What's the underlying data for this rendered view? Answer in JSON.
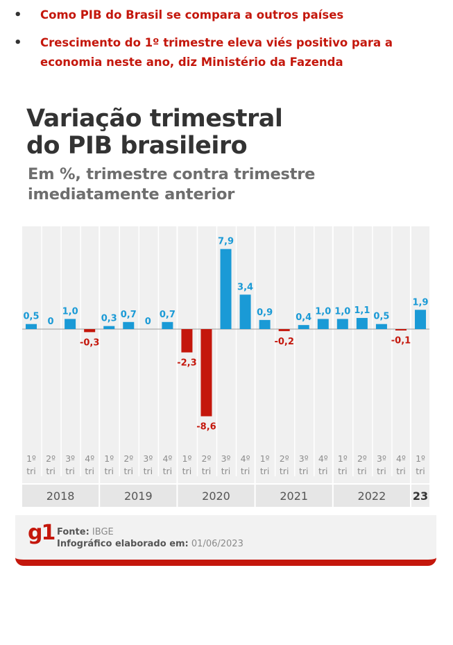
{
  "links": [
    "Como PIB do Brasil se compara a outros países",
    "Crescimento do 1º trimestre eleva viés positivo para a economia neste ano, diz Ministério da Fazenda"
  ],
  "bullet": "•",
  "infographic": {
    "title_line1": "Variação trimestral",
    "title_line2": "do PIB brasileiro",
    "subtitle_line1": "Em %, trimestre contra trimestre",
    "subtitle_line2": "imediatamente anterior"
  },
  "chart_data": {
    "type": "bar",
    "title": "Variação trimestral do PIB brasileiro",
    "subtitle": "Em %, trimestre contra trimestre imediatamente anterior",
    "quarter_labels": [
      "1º tri",
      "2º tri",
      "3º tri",
      "4º tri",
      "1º tri",
      "2º tri",
      "3º tri",
      "4º tri",
      "1º tri",
      "2º tri",
      "3º tri",
      "4º tri",
      "1º tri",
      "2º tri",
      "3º tri",
      "4º tri",
      "1º tri",
      "2º tri",
      "3º tri",
      "4º tri",
      "1º tri"
    ],
    "years": [
      {
        "label": "2018",
        "quarters": 4
      },
      {
        "label": "2019",
        "quarters": 4
      },
      {
        "label": "2020",
        "quarters": 4
      },
      {
        "label": "2021",
        "quarters": 4
      },
      {
        "label": "2022",
        "quarters": 4
      },
      {
        "label": "23",
        "quarters": 1
      }
    ],
    "values": [
      0.5,
      0,
      1.0,
      -0.3,
      0.3,
      0.7,
      0,
      0.7,
      -2.3,
      -8.6,
      7.9,
      3.4,
      0.9,
      -0.2,
      0.4,
      1.0,
      1.0,
      1.1,
      0.5,
      -0.1,
      1.9
    ],
    "value_labels": [
      "0,5",
      "0",
      "1,0",
      "-0,3",
      "0,3",
      "0,7",
      "0",
      "0,7",
      "-2,3",
      "-8,6",
      "7,9",
      "3,4",
      "0,9",
      "-0,2",
      "0,4",
      "1,0",
      "1,0",
      "1,1",
      "0,5",
      "-0,1",
      "1,9"
    ],
    "positive_color": "#1a9ad6",
    "negative_color": "#c4170c",
    "ylim": [
      -8.6,
      7.9
    ]
  },
  "footer": {
    "logo": "g1",
    "source_label": "Fonte:",
    "source_value": "IBGE",
    "made_label": "Infográfico elaborado em:",
    "made_value": "01/06/2023"
  }
}
